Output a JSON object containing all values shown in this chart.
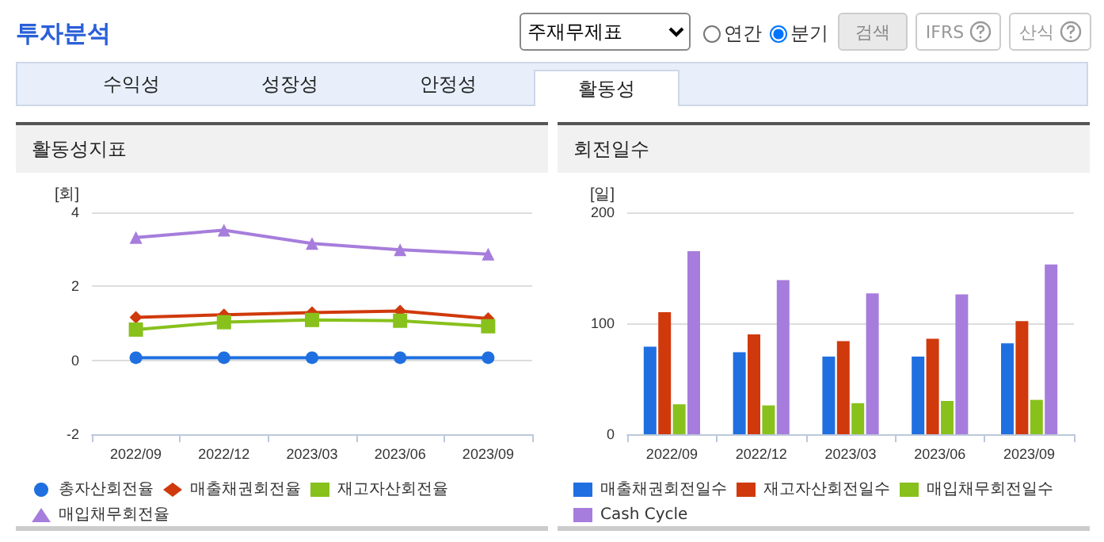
{
  "chart_data": [
    {
      "type": "other",
      "title": "투자분석",
      "annotations": [
        "주재무제표",
        "연간",
        "분기",
        "검색",
        "IFRS",
        "산식",
        "수익성",
        "성장성",
        "안정성",
        "활동성"
      ]
    },
    {
      "type": "line",
      "title": "활동성지표",
      "ylabel": "[회]",
      "categories": [
        "2022/09",
        "2022/12",
        "2023/03",
        "2023/06",
        "2023/09"
      ],
      "ylim": [
        -2,
        4
      ],
      "yticks": [
        -2,
        0,
        2,
        4
      ],
      "grid": "y",
      "legend": "bottom",
      "line_style": "solid",
      "series": [
        {
          "name": "총자산회전율",
          "color": "#1f6fe0",
          "marker": "circle",
          "values": [
            0.07,
            0.07,
            0.07,
            0.07,
            0.07
          ]
        },
        {
          "name": "매출채권회전율",
          "color": "#d0390c",
          "marker": "diamond",
          "values": [
            1.16,
            1.23,
            1.29,
            1.33,
            1.13
          ]
        },
        {
          "name": "재고자산회전율",
          "color": "#88c11c",
          "marker": "square",
          "values": [
            0.83,
            1.03,
            1.09,
            1.07,
            0.92
          ]
        },
        {
          "name": "매입채무회전율",
          "color": "#a67ddc",
          "marker": "triangle",
          "values": [
            3.32,
            3.52,
            3.16,
            2.99,
            2.87
          ]
        }
      ]
    },
    {
      "type": "bar",
      "title": "회전일수",
      "ylabel": "[일]",
      "categories": [
        "2022/09",
        "2022/12",
        "2023/03",
        "2023/06",
        "2023/09"
      ],
      "ylim": [
        0,
        200
      ],
      "yticks": [
        0,
        100,
        200
      ],
      "grid": "y",
      "legend": "bottom",
      "series": [
        {
          "name": "매출채권회전일수",
          "color": "#1f6fe0",
          "values": [
            79,
            74,
            70,
            70,
            82
          ]
        },
        {
          "name": "재고자산회전일수",
          "color": "#d0390c",
          "values": [
            110,
            90,
            84,
            86,
            102
          ]
        },
        {
          "name": "매입채무회전일수",
          "color": "#88c11c",
          "values": [
            27,
            26,
            28,
            30,
            31
          ]
        },
        {
          "name": "Cash Cycle",
          "color": "#a67ddc",
          "values": [
            165,
            139,
            127,
            126,
            153
          ]
        }
      ]
    }
  ]
}
